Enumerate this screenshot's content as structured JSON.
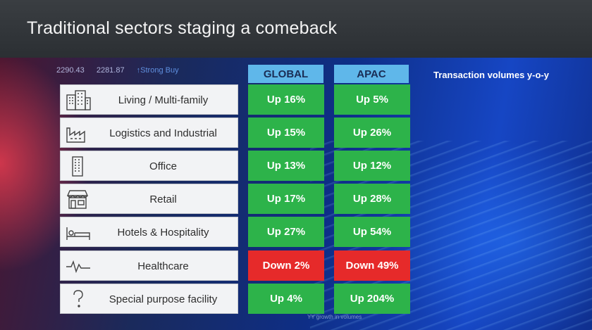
{
  "slide": {
    "title": "Traditional sectors staging a comeback",
    "columns": {
      "global": "GLOBAL",
      "apac": "APAC"
    },
    "note": "Transaction volumes y-o-y",
    "ticker": [
      "2290.43",
      "2281.87",
      "↑Strong Buy"
    ],
    "footnote": "YY growth in volumes",
    "rows": [
      {
        "label": "Living / Multi-family",
        "icon": "apartment-buildings-icon",
        "global": "Up 16%",
        "apac": "Up 5%",
        "global_dir": "up",
        "apac_dir": "up"
      },
      {
        "label": "Logistics and Industrial",
        "icon": "factory-icon",
        "global": "Up 15%",
        "apac": "Up 26%",
        "global_dir": "up",
        "apac_dir": "up"
      },
      {
        "label": "Office",
        "icon": "office-tower-icon",
        "global": "Up 13%",
        "apac": "Up 12%",
        "global_dir": "up",
        "apac_dir": "up"
      },
      {
        "label": "Retail",
        "icon": "storefront-icon",
        "global": "Up 17%",
        "apac": "Up 28%",
        "global_dir": "up",
        "apac_dir": "up"
      },
      {
        "label": "Hotels & Hospitality",
        "icon": "bed-icon",
        "global": "Up 27%",
        "apac": "Up 54%",
        "global_dir": "up",
        "apac_dir": "up"
      },
      {
        "label": "Healthcare",
        "icon": "heartbeat-icon",
        "global": "Down 2%",
        "apac": "Down 49%",
        "global_dir": "down",
        "apac_dir": "down"
      },
      {
        "label": "Special purpose facility",
        "icon": "question-mark-icon",
        "global": "Up 4%",
        "apac": "Up 204%",
        "global_dir": "up",
        "apac_dir": "up"
      }
    ],
    "colors": {
      "up": "#2db34a",
      "down": "#e62a2a",
      "header": "#5fb7ea"
    }
  }
}
